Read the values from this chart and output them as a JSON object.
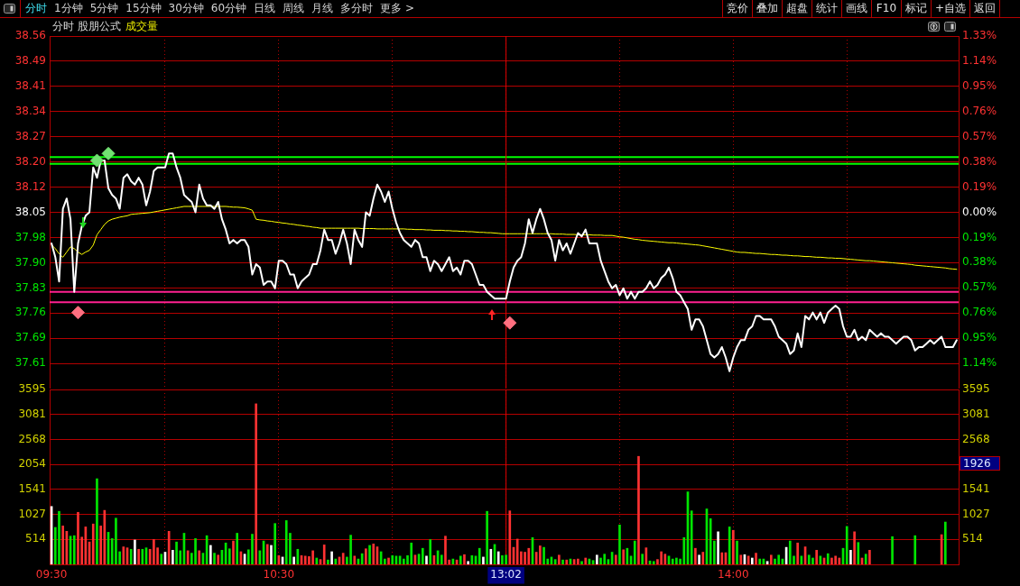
{
  "chart_data": [
    {
      "type": "line",
      "title": "分时 股朋公式",
      "subtitle": "成交量",
      "annotations": [
        "分时",
        "1分钟",
        "5分钟",
        "15分钟",
        "30分钟",
        "60分钟",
        "日线",
        "周线",
        "月线",
        "多分时",
        "更多 >",
        "竞价",
        "叠加",
        "超盘",
        "统计",
        "画线",
        "F10",
        "标记",
        "+自选",
        "返回"
      ],
      "categories": [
        "09:30",
        null,
        null,
        null,
        null,
        null,
        null,
        null,
        null,
        null,
        null,
        null,
        null,
        null,
        null,
        null,
        null,
        null,
        null,
        null,
        null,
        null,
        null,
        null,
        null,
        null,
        null,
        null,
        null,
        null,
        null,
        null,
        null,
        null,
        null,
        null,
        null,
        null,
        null,
        null,
        null,
        null,
        null,
        null,
        null,
        null,
        null,
        null,
        null,
        null,
        null,
        null,
        null,
        null,
        null,
        null,
        null,
        null,
        null,
        null,
        "10:30",
        null,
        null,
        null,
        null,
        null,
        null,
        null,
        null,
        null,
        null,
        null,
        null,
        null,
        null,
        null,
        null,
        null,
        null,
        null,
        null,
        null,
        null,
        null,
        null,
        null,
        null,
        null,
        null,
        null,
        null,
        null,
        null,
        null,
        null,
        null,
        null,
        null,
        null,
        null,
        null,
        null,
        null,
        null,
        null,
        null,
        null,
        null,
        null,
        null,
        null,
        null,
        null,
        null,
        null,
        null,
        null,
        null,
        null,
        null,
        "13:02",
        null,
        null,
        null,
        null,
        null,
        null,
        null,
        null,
        null,
        null,
        null,
        null,
        null,
        null,
        null,
        null,
        null,
        null,
        null,
        null,
        null,
        null,
        null,
        null,
        null,
        null,
        null,
        null,
        null,
        null,
        null,
        null,
        null,
        null,
        null,
        null,
        null,
        null,
        null,
        null,
        null,
        null,
        null,
        null,
        null,
        null,
        null,
        null,
        null,
        null,
        null,
        null,
        null,
        null,
        null,
        null,
        null,
        null,
        null,
        "14:00",
        null,
        null,
        null,
        null,
        null,
        null,
        null,
        null,
        null,
        null,
        null,
        null,
        null,
        null,
        null,
        null,
        null,
        null,
        null,
        null,
        null,
        null,
        null,
        null,
        null,
        null,
        null,
        null,
        null,
        null,
        null,
        null,
        null,
        null,
        null,
        null,
        null,
        null,
        null,
        null,
        null,
        null,
        null,
        null,
        null,
        null,
        null,
        null,
        null,
        null,
        null,
        null,
        null,
        null,
        null,
        null,
        null,
        null,
        null
      ],
      "ylim": [
        37.54,
        38.56
      ],
      "yticks": [
        {
          "value": 37.613,
          "label": "37.61"
        },
        {
          "value": 37.686,
          "label": "37.69"
        },
        {
          "value": 37.759,
          "label": "37.76"
        },
        {
          "value": 37.831,
          "label": "37.83"
        },
        {
          "value": 37.904,
          "label": "37.90"
        },
        {
          "value": 37.977,
          "label": "37.98"
        },
        38.05,
        {
          "value": 38.123,
          "label": "38.12"
        },
        {
          "value": 38.196,
          "label": "38.20"
        },
        {
          "value": 38.269,
          "label": "38.27"
        },
        {
          "value": 38.341,
          "label": "38.34"
        },
        {
          "value": 38.414,
          "label": "38.41"
        },
        {
          "value": 38.487,
          "label": "38.49"
        },
        38.56
      ],
      "y2lim": [
        -1.33,
        1.33
      ],
      "y2ticks": [
        {
          "value": -1.14,
          "label": "1.14%"
        },
        {
          "value": -0.95,
          "label": "0.95%"
        },
        {
          "value": -0.76,
          "label": "0.76%"
        },
        {
          "value": -0.57,
          "label": "0.57%"
        },
        {
          "value": -0.38,
          "label": "0.38%"
        },
        {
          "value": -0.19,
          "label": "0.19%"
        },
        {
          "value": 0,
          "label": "0.00%"
        },
        {
          "value": 0.19,
          "label": "0.19%"
        },
        {
          "value": 0.38,
          "label": "0.38%"
        },
        {
          "value": 0.57,
          "label": "0.57%"
        },
        {
          "value": 0.76,
          "label": "0.76%"
        },
        {
          "value": 0.95,
          "label": "0.95%"
        },
        {
          "value": 1.14,
          "label": "1.14%"
        },
        {
          "value": 1.33,
          "label": "1.33%"
        }
      ],
      "series": [
        {
          "color": "#ffffff",
          "values": [
            37.96,
            37.92,
            37.85,
            38.06,
            38.09,
            38.03,
            37.82,
            37.96,
            38.01,
            38.04,
            38.05,
            38.18,
            38.15,
            38.2,
            38.2,
            38.12,
            38.1,
            38.09,
            38.06,
            38.15,
            38.16,
            38.14,
            38.13,
            38.15,
            38.13,
            38.07,
            38.11,
            38.17,
            38.18,
            38.18,
            38.18,
            38.22,
            38.22,
            38.18,
            38.15,
            38.1,
            38.09,
            38.08,
            38.05,
            38.13,
            38.09,
            38.07,
            38.07,
            38.06,
            38.08,
            38.03,
            38.0,
            37.96,
            37.97,
            37.96,
            37.97,
            37.97,
            37.95,
            37.87,
            37.9,
            37.89,
            37.84,
            37.85,
            37.85,
            37.83,
            37.91,
            37.91,
            37.9,
            37.87,
            37.87,
            37.83,
            37.85,
            37.86,
            37.87,
            37.9,
            37.9,
            37.94,
            38.0,
            37.97,
            37.97,
            37.93,
            37.96,
            38.0,
            37.96,
            37.9,
            38.0,
            37.97,
            37.95,
            38.05,
            38.04,
            38.09,
            38.13,
            38.11,
            38.08,
            38.11,
            38.06,
            38.02,
            37.99,
            37.97,
            37.96,
            37.95,
            37.97,
            37.96,
            37.92,
            37.92,
            37.88,
            37.91,
            37.9,
            37.88,
            37.9,
            37.92,
            37.88,
            37.89,
            37.87,
            37.91,
            37.91,
            37.9,
            37.87,
            37.84,
            37.84,
            37.82,
            37.81,
            37.8,
            37.8,
            37.8,
            37.8,
            37.85,
            37.89,
            37.91,
            37.92,
            37.96,
            38.03,
            37.99,
            38.03,
            38.06,
            38.03,
            37.99,
            37.97,
            37.91,
            37.97,
            37.94,
            37.96,
            37.93,
            37.96,
            37.99,
            37.98,
            38.0,
            37.96,
            37.96,
            37.96,
            37.91,
            37.88,
            37.85,
            37.83,
            37.84,
            37.81,
            37.83,
            37.8,
            37.82,
            37.8,
            37.82,
            37.82,
            37.83,
            37.85,
            37.83,
            37.84,
            37.86,
            37.87,
            37.89,
            37.86,
            37.82,
            37.81,
            37.79,
            37.77,
            37.71,
            37.74,
            37.74,
            37.72,
            37.68,
            37.64,
            37.63,
            37.64,
            37.66,
            37.63,
            37.59,
            37.63,
            37.66,
            37.68,
            37.68,
            37.71,
            37.72,
            37.75,
            37.75,
            37.74,
            37.74,
            37.74,
            37.72,
            37.69,
            37.68,
            37.67,
            37.64,
            37.65,
            37.7,
            37.66,
            37.75,
            37.74,
            37.76,
            37.74,
            37.76,
            37.73,
            37.76,
            37.77,
            37.78,
            37.77,
            37.72,
            37.69,
            37.69,
            37.71,
            37.68,
            37.69,
            37.68,
            37.71,
            37.7,
            37.69,
            37.7,
            37.69,
            37.69,
            37.68,
            37.67,
            37.68,
            37.69,
            37.69,
            37.68,
            37.65,
            37.66,
            37.66,
            37.67,
            37.68,
            37.67,
            37.68,
            37.69,
            37.66,
            37.66,
            37.66,
            37.68
          ]
        },
        {
          "color": "#ffff00",
          "values": [
            37.956,
            37.945,
            37.93,
            37.92,
            37.935,
            37.95,
            37.945,
            37.935,
            37.928,
            37.935,
            37.94,
            37.955,
            37.985,
            38.0,
            38.015,
            38.025,
            38.03,
            38.033,
            38.036,
            38.038,
            38.04,
            38.044,
            38.045,
            38.046,
            38.047,
            38.048,
            38.049,
            38.051,
            38.053,
            38.055,
            38.057,
            38.059,
            38.061,
            38.063,
            38.065,
            38.067,
            38.067,
            38.067,
            38.067,
            38.067,
            38.067,
            38.067,
            38.067,
            38.067,
            38.067,
            38.067,
            38.067,
            38.066,
            38.065,
            38.065,
            38.064,
            38.063,
            38.06,
            38.056,
            38.03,
            38.028,
            38.027,
            38.025,
            38.024,
            38.022,
            38.021,
            38.019,
            38.018,
            38.016,
            38.015,
            38.013,
            38.012,
            38.01,
            38.009,
            38.007,
            38.006,
            38.004,
            38.004,
            38.004,
            38.004,
            38.004,
            38.004,
            38.004,
            38.004,
            38.004,
            38.004,
            38.004,
            38.003,
            38.003,
            38.003,
            38.003,
            38.002,
            38.002,
            38.002,
            38.002,
            38.002,
            38.002,
            38.002,
            38.002,
            38.001,
            38.001,
            38.0,
            38.0,
            38.0,
            37.999,
            37.999,
            37.998,
            37.998,
            37.998,
            37.997,
            37.997,
            37.996,
            37.996,
            37.995,
            37.995,
            37.994,
            37.994,
            37.993,
            37.992,
            37.992,
            37.991,
            37.991,
            37.99,
            37.989,
            37.988,
            37.988,
            37.988,
            37.988,
            37.988,
            37.988,
            37.988,
            37.988,
            37.988,
            37.988,
            37.988,
            37.988,
            37.988,
            37.988,
            37.987,
            37.987,
            37.987,
            37.986,
            37.986,
            37.986,
            37.985,
            37.985,
            37.985,
            37.985,
            37.984,
            37.984,
            37.984,
            37.983,
            37.983,
            37.983,
            37.981,
            37.979,
            37.978,
            37.976,
            37.974,
            37.972,
            37.971,
            37.969,
            37.968,
            37.967,
            37.966,
            37.965,
            37.964,
            37.963,
            37.962,
            37.962,
            37.961,
            37.96,
            37.959,
            37.958,
            37.957,
            37.956,
            37.955,
            37.953,
            37.951,
            37.949,
            37.947,
            37.945,
            37.943,
            37.941,
            37.939,
            37.937,
            37.935,
            37.934,
            37.934,
            37.933,
            37.932,
            37.931,
            37.931,
            37.93,
            37.929,
            37.928,
            37.928,
            37.927,
            37.926,
            37.926,
            37.925,
            37.924,
            37.924,
            37.923,
            37.922,
            37.922,
            37.921,
            37.92,
            37.92,
            37.919,
            37.918,
            37.918,
            37.917,
            37.917,
            37.916,
            37.915,
            37.914,
            37.913,
            37.912,
            37.911,
            37.91,
            37.91,
            37.909,
            37.908,
            37.907,
            37.906,
            37.905,
            37.904,
            37.903,
            37.902,
            37.901,
            37.9,
            37.899,
            37.897,
            37.896,
            37.895,
            37.894,
            37.893,
            37.892,
            37.891,
            37.89,
            37.889,
            37.887,
            37.886,
            37.885
          ]
        },
        {
          "type": "scatter",
          "marker": "diamond",
          "color": "#72e072",
          "values": [
            null,
            null,
            null,
            null,
            null,
            null,
            null,
            null,
            null,
            null,
            null,
            null,
            38.2,
            null,
            null,
            38.22,
            null,
            null,
            null,
            null,
            null,
            null,
            null,
            null,
            null,
            null,
            null,
            null,
            null,
            null,
            null,
            null,
            null,
            null,
            null,
            null,
            null,
            null,
            null,
            null,
            null,
            null,
            null,
            null,
            null,
            null,
            null,
            null,
            null,
            null,
            null,
            null,
            null,
            null,
            null,
            null,
            null,
            null,
            null,
            null,
            null,
            null,
            null,
            null,
            null,
            null,
            null,
            null,
            null,
            null,
            null,
            null,
            null,
            null,
            null,
            null,
            null,
            null,
            null,
            null,
            null,
            null,
            null,
            null,
            null,
            null,
            null,
            null,
            null,
            null,
            null,
            null,
            null,
            null,
            null,
            null,
            null,
            null,
            null,
            null,
            null,
            null,
            null,
            null,
            null,
            null,
            null,
            null,
            null,
            null,
            null,
            null,
            null,
            null,
            null,
            null,
            null,
            null,
            null,
            null,
            null,
            null,
            null,
            null,
            null,
            null,
            null,
            null,
            null,
            null,
            null,
            null,
            null,
            null,
            null,
            null,
            null,
            null,
            null,
            null,
            null,
            null,
            null,
            null,
            null,
            null,
            null,
            null,
            null,
            null,
            null,
            null,
            null,
            null,
            null,
            null,
            null,
            null,
            null,
            null,
            null,
            null,
            null,
            null,
            null,
            null,
            null,
            null,
            null,
            null,
            null,
            null,
            null,
            null,
            null,
            null,
            null,
            null,
            null,
            null,
            null,
            null,
            null,
            null,
            null,
            null,
            null,
            null,
            null,
            null,
            null,
            null,
            null,
            null,
            null,
            null,
            null,
            null,
            null,
            null,
            null,
            null,
            null,
            null,
            null,
            null,
            null,
            null,
            null,
            null,
            null,
            null,
            null,
            null,
            null,
            null,
            null,
            null,
            null,
            null,
            null,
            null,
            null,
            null,
            null,
            null,
            null,
            null,
            null,
            null,
            null,
            null,
            null,
            null,
            null,
            null,
            null,
            null,
            null,
            null
          ]
        },
        {
          "type": "scatter",
          "marker": "diamond",
          "color": "#ff6f80",
          "values": [
            null,
            null,
            null,
            null,
            null,
            null,
            null,
            37.76,
            null,
            null,
            null,
            null,
            null,
            null,
            null,
            null,
            null,
            null,
            null,
            null,
            null,
            null,
            null,
            null,
            null,
            null,
            null,
            null,
            null,
            null,
            null,
            null,
            null,
            null,
            null,
            null,
            null,
            null,
            null,
            null,
            null,
            null,
            null,
            null,
            null,
            null,
            null,
            null,
            null,
            null,
            null,
            null,
            null,
            null,
            null,
            null,
            null,
            null,
            null,
            null,
            null,
            null,
            null,
            null,
            null,
            null,
            null,
            null,
            null,
            null,
            null,
            null,
            null,
            null,
            null,
            null,
            null,
            null,
            null,
            null,
            null,
            null,
            null,
            null,
            null,
            null,
            null,
            null,
            null,
            null,
            null,
            null,
            null,
            null,
            null,
            null,
            null,
            null,
            null,
            null,
            null,
            null,
            null,
            null,
            null,
            null,
            null,
            null,
            null,
            null,
            null,
            null,
            null,
            null,
            null,
            null,
            null,
            null,
            null,
            null,
            null,
            37.73,
            null,
            null,
            null,
            null,
            null,
            null,
            null,
            null,
            null,
            null,
            null,
            null,
            null,
            null,
            null,
            null,
            null,
            null,
            null,
            null,
            null,
            null,
            null,
            null,
            null,
            null,
            null,
            null,
            null,
            null,
            null,
            null,
            null,
            null,
            null,
            null,
            null,
            null,
            null,
            null,
            null,
            null,
            null,
            null,
            null,
            null,
            null,
            null,
            null,
            null,
            null,
            null,
            null,
            null,
            null,
            null,
            null,
            null,
            null,
            null,
            null,
            null,
            null,
            null,
            null,
            null,
            null,
            null,
            null,
            null,
            null,
            null,
            null,
            null,
            null,
            null,
            null,
            null,
            null,
            null,
            null,
            null,
            null,
            null,
            null,
            null,
            null,
            null,
            null,
            null,
            null,
            null,
            null,
            null,
            null,
            null,
            null,
            null,
            null,
            null,
            null,
            null,
            null,
            null,
            null,
            null,
            null,
            null,
            null,
            null,
            null,
            null,
            null,
            null,
            null,
            null,
            null,
            null
          ]
        }
      ],
      "ref_lines": [
        {
          "axis": "y",
          "value": 38.21,
          "color": "#00ff00"
        },
        {
          "axis": "y",
          "value": 38.19,
          "color": "#00ff00"
        },
        {
          "axis": "y",
          "value": 37.82,
          "color": "#ff2090"
        },
        {
          "axis": "y",
          "value": 37.79,
          "color": "#ff2090"
        },
        {
          "axis": "x",
          "value": "13:02",
          "color": "#e00000"
        }
      ],
      "grid": true,
      "tick_labels": "y"
    },
    {
      "type": "bar",
      "categories": [
        "09:30",
        null,
        null,
        null,
        null,
        null,
        null,
        null,
        null,
        null,
        null,
        null,
        null,
        null,
        null,
        null,
        null,
        null,
        null,
        null,
        null,
        null,
        null,
        null,
        null,
        null,
        null,
        null,
        null,
        null,
        null,
        null,
        null,
        null,
        null,
        null,
        null,
        null,
        null,
        null,
        null,
        null,
        null,
        null,
        null,
        null,
        null,
        null,
        null,
        null,
        null,
        null,
        null,
        null,
        null,
        null,
        null,
        null,
        null,
        null,
        "10:30",
        null,
        null,
        null,
        null,
        null,
        null,
        null,
        null,
        null,
        null,
        null,
        null,
        null,
        null,
        null,
        null,
        null,
        null,
        null,
        null,
        null,
        null,
        null,
        null,
        null,
        null,
        null,
        null,
        null,
        null,
        null,
        null,
        null,
        null,
        null,
        null,
        null,
        null,
        null,
        null,
        null,
        null,
        null,
        null,
        null,
        null,
        null,
        null,
        null,
        null,
        null,
        null,
        null,
        null,
        null,
        null,
        null,
        null,
        null,
        "13:02",
        null,
        null,
        null,
        null,
        null,
        null,
        null,
        null,
        null,
        null,
        null,
        null,
        null,
        null,
        null,
        null,
        null,
        null,
        null,
        null,
        null,
        null,
        null,
        null,
        null,
        null,
        null,
        null,
        null,
        null,
        null,
        null,
        null,
        null,
        null,
        null,
        null,
        null,
        null,
        null,
        null,
        null,
        null,
        null,
        null,
        null,
        null,
        null,
        null,
        null,
        null,
        null,
        null,
        null,
        null,
        null,
        null,
        null,
        null,
        "14:00",
        null,
        null,
        null,
        null,
        null,
        null,
        null,
        null,
        null,
        null,
        null,
        null,
        null,
        null,
        null,
        null,
        null,
        null,
        null,
        null,
        null,
        null,
        null,
        null,
        null,
        null,
        null,
        null,
        null,
        null,
        null,
        null,
        null,
        null,
        null,
        null,
        null,
        null,
        null,
        null,
        null,
        null,
        null,
        null,
        null,
        null,
        null,
        null,
        null,
        null,
        null,
        null,
        null,
        null,
        null,
        null,
        null,
        null,
        null
      ],
      "ylim": [
        0,
        3595
      ],
      "yticks": [
        514,
        1027,
        1541,
        2054,
        2568,
        3081,
        3595
      ],
      "y2lim": [
        0,
        3595
      ],
      "y2ticks": [
        514,
        1027,
        1541,
        {
          "value": 2054,
          "label": null
        },
        2568,
        3081,
        3595
      ],
      "values": [
        1190,
        760,
        1090,
        790,
        680,
        580,
        590,
        1070,
        560,
        770,
        460,
        830,
        1760,
        790,
        1110,
        660,
        530,
        950,
        260,
        360,
        340,
        310,
        500,
        310,
        310,
        340,
        310,
        510,
        340,
        210,
        250,
        680,
        290,
        460,
        280,
        640,
        280,
        230,
        530,
        280,
        230,
        590,
        390,
        230,
        190,
        290,
        440,
        320,
        480,
        640,
        260,
        210,
        300,
        620,
        3300,
        280,
        480,
        410,
        390,
        840,
        180,
        150,
        900,
        640,
        150,
        310,
        180,
        170,
        160,
        280,
        130,
        100,
        400,
        90,
        260,
        110,
        150,
        230,
        150,
        600,
        170,
        110,
        220,
        320,
        390,
        420,
        360,
        260,
        110,
        130,
        180,
        170,
        170,
        110,
        180,
        440,
        190,
        210,
        330,
        170,
        510,
        180,
        280,
        190,
        580,
        90,
        110,
        90,
        170,
        200,
        60,
        180,
        170,
        330,
        150,
        1090,
        310,
        410,
        260,
        180,
        190,
        1100,
        350,
        520,
        260,
        250,
        330,
        550,
        250,
        380,
        350,
        110,
        150,
        100,
        190,
        90,
        90,
        110,
        100,
        110,
        60,
        130,
        110,
        80,
        190,
        130,
        210,
        100,
        250,
        190,
        810,
        300,
        330,
        170,
        480,
        2220,
        210,
        340,
        70,
        60,
        100,
        260,
        210,
        170,
        110,
        130,
        110,
        550,
        1490,
        1100,
        330,
        190,
        250,
        1140,
        940,
        480,
        670,
        240,
        240,
        770,
        700,
        480,
        190,
        200,
        170,
        130,
        230,
        110,
        110,
        60,
        190,
        110,
        190,
        110,
        350,
        480,
        170,
        440,
        170,
        360,
        190,
        130,
        290,
        170,
        130,
        220,
        130,
        170,
        130,
        330,
        780,
        290,
        670,
        450,
        130,
        210,
        290,
        null,
        null,
        null,
        null,
        null,
        570,
        null,
        null,
        null,
        null,
        null,
        590,
        null,
        null,
        null,
        null,
        null,
        null,
        610,
        870,
        null,
        null,
        null
      ],
      "colors": [
        "#ffffff",
        "#00e600",
        "#00e600",
        "#ff3232",
        "#ff3232",
        "#00e600",
        "#00e600",
        "#ff3232",
        "#ff3232",
        "#ff3232",
        "#ff3232",
        "#ff3232",
        "#00e600",
        "#ff3232",
        "#ff3232",
        "#00e600",
        "#00e600",
        "#00e600",
        "#00e600",
        "#ff3232",
        "#ff3232",
        "#00e600",
        "#ffffff",
        "#ff3232",
        "#00e600",
        "#00e600",
        "#ff3232",
        "#ff3232",
        "#ff3232",
        "#00e600",
        "#ffffff",
        "#ff3232",
        "#ffffff",
        "#00e600",
        "#00e600",
        "#00e600",
        "#ff3232",
        "#00e600",
        "#00e600",
        "#ff3232",
        "#00e600",
        "#00e600",
        "#ffffff",
        "#00e600",
        "#ff3232",
        "#00e600",
        "#00e600",
        "#00e600",
        "#ff3232",
        "#00e600",
        "#ff3232",
        "#ffffff",
        "#00e600",
        "#00e600",
        "#ff3232",
        "#00e600",
        "#00e600",
        "#ff3232",
        "#ffffff",
        "#00e600",
        "#ff3232",
        "#ffffff",
        "#00e600",
        "#00e600",
        "#ffffff",
        "#00e600",
        "#ff3232",
        "#ff3232",
        "#ff3232",
        "#ff3232",
        "#00e600",
        "#ff3232",
        "#ff3232",
        "#00e600",
        "#ffffff",
        "#00e600",
        "#ff3232",
        "#ff3232",
        "#00e600",
        "#00e600",
        "#ff3232",
        "#00e600",
        "#00e600",
        "#ff3232",
        "#00e600",
        "#ff3232",
        "#ff3232",
        "#00e600",
        "#00e600",
        "#ff3232",
        "#00e600",
        "#00e600",
        "#00e600",
        "#00e600",
        "#00e600",
        "#00e600",
        "#ff3232",
        "#00e600",
        "#00e600",
        "#ffffff",
        "#00e600",
        "#ff3232",
        "#00e600",
        "#00e600",
        "#ff3232",
        "#ff3232",
        "#00e600",
        "#ff3232",
        "#00e600",
        "#ff3232",
        "#ffffff",
        "#00e600",
        "#00e600",
        "#00e600",
        "#ffffff",
        "#00e600",
        "#ffffff",
        "#00e600",
        "#ffffff",
        "#00e600",
        "#00e600",
        "#ff3232",
        "#ff3232",
        "#ff3232",
        "#ff3232",
        "#ff3232",
        "#ff3232",
        "#00e600",
        "#ff3232",
        "#ff3232",
        "#00e600",
        "#00e600",
        "#00e600",
        "#00e600",
        "#ff3232",
        "#00e600",
        "#ff3232",
        "#00e600",
        "#ff3232",
        "#ff3232",
        "#00e600",
        "#ff3232",
        "#00e600",
        "#00e600",
        "#ffffff",
        "#00e600",
        "#00e600",
        "#00e600",
        "#00e600",
        "#ff3232",
        "#00e600",
        "#ff3232",
        "#00e600",
        "#00e600",
        "#00e600",
        "#ff3232",
        "#00e600",
        "#ff3232",
        "#00e600",
        "#00e600",
        "#ff3232",
        "#ff3232",
        "#ff3232",
        "#00e600",
        "#00e600",
        "#00e600",
        "#00e600",
        "#00e600",
        "#00e600",
        "#00e600",
        "#ff3232",
        "#ffffff",
        "#ff3232",
        "#00e600",
        "#00e600",
        "#00e600",
        "#ffffff",
        "#ff3232",
        "#ff3232",
        "#00e600",
        "#ff3232",
        "#00e600",
        "#ff3232",
        "#ffffff",
        "#ff3232",
        "#ffffff",
        "#ff3232",
        "#00e600",
        "#00e600",
        "#ffffff",
        "#ff3232",
        "#00e600",
        "#00e600",
        "#00e600",
        "#ffffff",
        "#00e600",
        "#00e600",
        "#ff3232",
        "#00e600",
        "#ff3232",
        "#00e600",
        "#00e600",
        "#ff3232",
        "#00e600",
        "#ff3232",
        "#00e600",
        "#ff3232",
        "#ff3232",
        "#ff3232",
        "#00e600",
        "#00e600",
        "#ffffff",
        "#ff3232",
        "#00e600",
        "#ff3232",
        "#00e600",
        "#ff3232",
        null,
        null,
        null,
        null,
        null,
        "#00e600",
        null,
        null,
        null,
        null,
        null,
        "#00e600",
        null,
        null,
        null,
        null,
        null,
        null,
        "#ff3232",
        "#00e600",
        null,
        null,
        null
      ],
      "ref_lines": [
        {
          "axis": "x",
          "value": "13:02",
          "color": "#e00000"
        }
      ],
      "annotations": [
        "1926"
      ],
      "grid": true
    }
  ]
}
